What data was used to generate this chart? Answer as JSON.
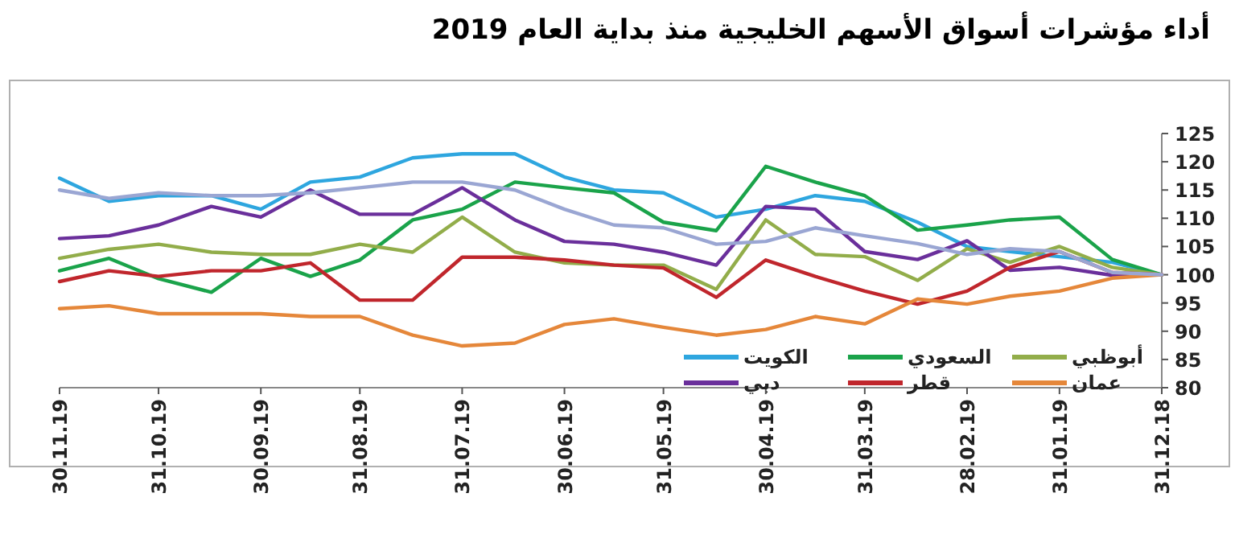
{
  "chart_data": {
    "type": "line",
    "title": "أداء مؤشرات أسواق الأسهم الخليجية منذ بداية العام 2019",
    "x": [
      "2018-12-31",
      "2019-01-15",
      "2019-01-31",
      "2019-02-15",
      "2019-02-28",
      "2019-03-15",
      "2019-03-31",
      "2019-04-15",
      "2019-04-30",
      "2019-05-15",
      "2019-05-31",
      "2019-06-15",
      "2019-06-30",
      "2019-07-15",
      "2019-07-31",
      "2019-08-15",
      "2019-08-31",
      "2019-09-15",
      "2019-09-30",
      "2019-10-15",
      "2019-10-31",
      "2019-11-15",
      "2019-11-30"
    ],
    "series": [
      {
        "name": "الكويت",
        "color": "#2ea6df",
        "values": [
          100,
          102.2,
          103.2,
          104.1,
          105,
          109.3,
          113,
          114,
          111.6,
          110.2,
          114.5,
          115,
          117.3,
          121.4,
          121.4,
          120.7,
          117.3,
          116.4,
          111.6,
          114,
          114,
          113,
          117.1
        ]
      },
      {
        "name": "السعودي",
        "color": "#1aa34a",
        "values": [
          100,
          102.7,
          110.2,
          109.7,
          108.8,
          107.9,
          114,
          116.4,
          119.2,
          107.8,
          109.3,
          114.5,
          115.4,
          116.4,
          111.6,
          109.7,
          102.6,
          99.7,
          102.9,
          96.9,
          99.3,
          102.9,
          100.7
        ]
      },
      {
        "name": "أبوظبي",
        "color": "#92ad4a",
        "values": [
          100,
          101.3,
          105,
          102.2,
          104.6,
          99,
          103.2,
          103.6,
          109.7,
          97.4,
          101.7,
          101.7,
          102.1,
          104,
          110.2,
          104,
          105.4,
          103.6,
          103.6,
          104,
          105.4,
          104.5,
          102.9
        ]
      },
      {
        "name": "دبي",
        "color": "#6a2f9b",
        "values": [
          100,
          99.9,
          101.3,
          100.8,
          106,
          102.7,
          104.1,
          111.6,
          112.1,
          101.7,
          104,
          105.4,
          105.9,
          109.7,
          115.4,
          110.7,
          110.7,
          115,
          110.2,
          112.1,
          108.8,
          106.9,
          106.4
        ]
      },
      {
        "name": "قطر",
        "color": "#c0262c",
        "values": [
          100,
          100.4,
          104.1,
          101.3,
          97.1,
          94.8,
          97.1,
          99.7,
          102.6,
          96,
          101.2,
          101.7,
          102.6,
          103.1,
          103.1,
          95.5,
          95.5,
          102.1,
          100.7,
          100.7,
          99.7,
          100.7,
          98.8
        ]
      },
      {
        "name": "عمان",
        "color": "#e5873a",
        "values": [
          100,
          99.4,
          97.1,
          96.2,
          94.8,
          95.7,
          91.3,
          92.6,
          90.3,
          89.3,
          90.7,
          92.2,
          91.2,
          87.9,
          87.4,
          89.3,
          92.6,
          92.6,
          93.1,
          93.1,
          93.1,
          94.5,
          94
        ]
      },
      {
        "color": "#9aa6d3",
        "values": [
          100,
          100.4,
          104.1,
          104.6,
          103.6,
          105.5,
          106.9,
          108.3,
          105.9,
          105.4,
          108.3,
          108.8,
          111.6,
          115,
          116.4,
          116.4,
          115.4,
          114.5,
          114,
          114,
          114.5,
          113.5,
          115
        ]
      }
    ],
    "xlim": [
      "2019-11-30",
      "2018-12-31"
    ],
    "xticks": [
      {
        "value": "2019-11-30",
        "label": "30.11.19"
      },
      {
        "value": "2019-10-31",
        "label": "31.10.19"
      },
      {
        "value": "2019-09-30",
        "label": "30.09.19"
      },
      {
        "value": "2019-08-31",
        "label": "31.08.19"
      },
      {
        "value": "2019-07-31",
        "label": "31.07.19"
      },
      {
        "value": "2019-06-30",
        "label": "30.06.19"
      },
      {
        "value": "2019-05-31",
        "label": "31.05.19"
      },
      {
        "value": "2019-04-30",
        "label": "30.04.19"
      },
      {
        "value": "2019-03-31",
        "label": "31.03.19"
      },
      {
        "value": "2019-02-28",
        "label": "28.02.19"
      },
      {
        "value": "2019-01-31",
        "label": "31.01.19"
      },
      {
        "value": "2018-12-31",
        "label": "31.12.18"
      }
    ],
    "ylim": [
      80,
      125
    ],
    "yticks": [
      80,
      85,
      90,
      95,
      100,
      105,
      110,
      115,
      120,
      125
    ],
    "legend": "bottom",
    "marker": "none"
  }
}
